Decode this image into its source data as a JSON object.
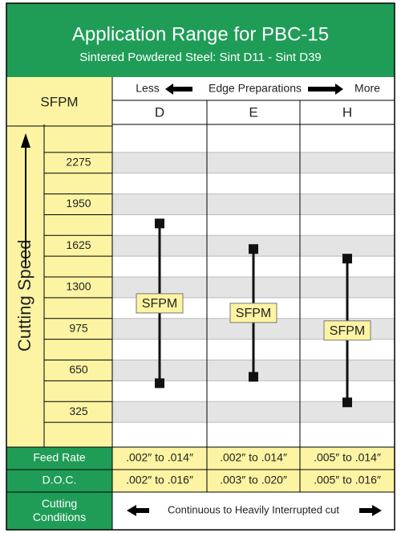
{
  "chart_data": {
    "type": "range",
    "title": "Application Range for PBC-15",
    "subtitle": "Sintered Powdered Steel: Sint D11 - Sint D39",
    "y_header": "SFPM",
    "y_label": "Cutting Speed",
    "x_header": {
      "left": "Less",
      "center": "Edge Preparations",
      "right": "More"
    },
    "categories": [
      "D",
      "E",
      "H"
    ],
    "low": [
      550,
      600,
      400
    ],
    "high": [
      1800,
      1600,
      1525
    ],
    "bar_label": "SFPM",
    "color": "#111111",
    "ylim": [
      50,
      2575
    ],
    "yticks": [
      325,
      650,
      975,
      1300,
      1625,
      1950,
      2275
    ],
    "grid": true
  },
  "table": {
    "rows": [
      {
        "label": "Feed Rate",
        "cells": [
          ".002″ to .014″",
          ".002″ to .014″",
          ".005″ to .014″"
        ]
      },
      {
        "label": "D.O.C.",
        "cells": [
          ".002″ to .016″",
          ".003″ to .020″",
          ".005″ to .016″"
        ]
      }
    ],
    "footer": {
      "label": "Cutting Conditions",
      "text": "Continuous to Heavily Interrupted cut"
    }
  }
}
